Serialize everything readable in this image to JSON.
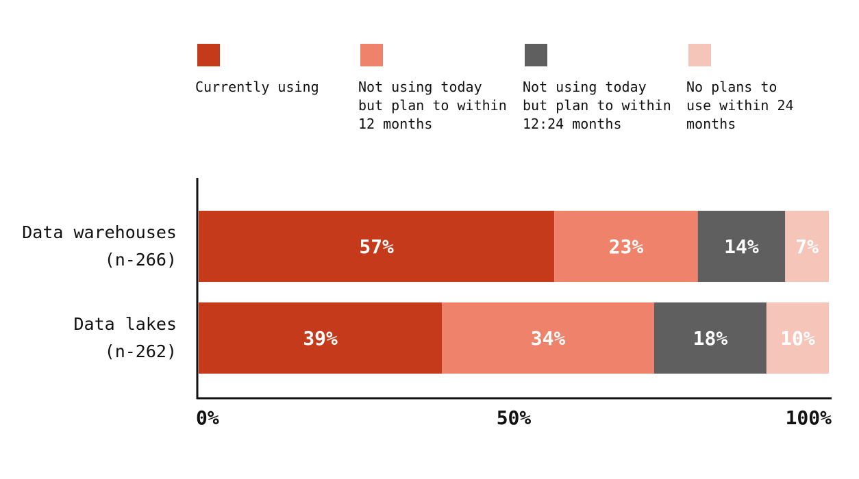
{
  "chart_data": {
    "type": "bar",
    "orientation": "horizontal",
    "stacked": true,
    "categories": [
      {
        "name": "Data warehouses",
        "sample": "(n-266)"
      },
      {
        "name": "Data lakes",
        "sample": "(n-262)"
      }
    ],
    "series": [
      {
        "name": "Currently using",
        "color": "#c53a1a",
        "values": [
          57,
          39
        ],
        "labels": [
          "57%",
          "39%"
        ]
      },
      {
        "name": "Not using today\nbut plan to within\n12 months",
        "color": "#ee826b",
        "values": [
          23,
          34
        ],
        "labels": [
          "23%",
          "34%"
        ]
      },
      {
        "name": "Not using today\nbut plan to within\n12:24 months",
        "color": "#5f5f5f",
        "values": [
          14,
          18
        ],
        "labels": [
          "14%",
          "18%"
        ]
      },
      {
        "name": "No plans to\nuse within 24\nmonths",
        "color": "#f6c5ba",
        "values": [
          7,
          10
        ],
        "labels": [
          "7%",
          "10%"
        ]
      }
    ],
    "x_ticks": [
      {
        "value": 0,
        "label": "0%"
      },
      {
        "value": 50,
        "label": "50%"
      },
      {
        "value": 100,
        "label": "100%"
      }
    ],
    "xlim": [
      0,
      100
    ],
    "grid": false,
    "legend_position": "top"
  }
}
